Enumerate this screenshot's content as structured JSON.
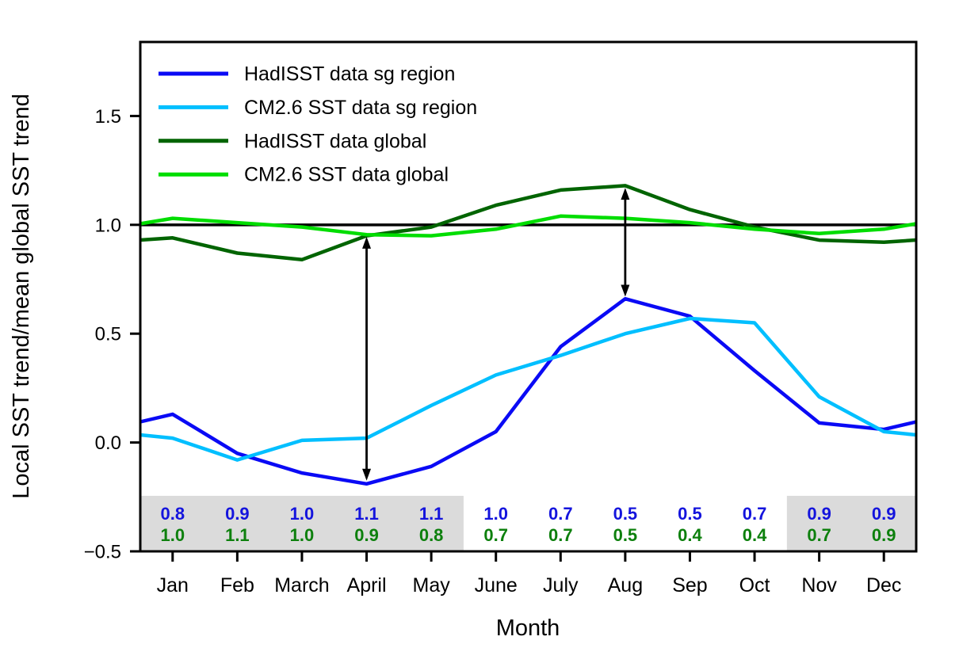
{
  "figure": {
    "background": "#ffffff"
  },
  "chart_data": {
    "type": "line",
    "title": "",
    "xlabel": "Month",
    "ylabel": "Local SST trend/mean global SST trend",
    "categories": [
      "Jan",
      "Feb",
      "March",
      "April",
      "May",
      "June",
      "July",
      "Aug",
      "Sep",
      "Oct",
      "Nov",
      "Dec"
    ],
    "ylim": [
      -0.5,
      1.84
    ],
    "xlim_month_index": [
      -0.5,
      11.5
    ],
    "yticks": [
      -0.5,
      0.0,
      0.5,
      1.0,
      1.5
    ],
    "ytick_labels": [
      "−0.5",
      "0.0",
      "0.5",
      "1.0",
      "1.5"
    ],
    "grid": false,
    "legend": {
      "position": "upper left",
      "frame": false
    },
    "reference_line": {
      "y": 1.0,
      "color": "#000000"
    },
    "series": [
      {
        "name": "HadISST data sg region",
        "color": "#0a0af5",
        "values": [
          0.13,
          -0.05,
          -0.14,
          -0.19,
          -0.11,
          0.05,
          0.44,
          0.66,
          0.58,
          0.33,
          0.09,
          0.06
        ],
        "cyclic_extension": true
      },
      {
        "name": "CM2.6 SST data sg region",
        "color": "#00bfff",
        "values": [
          0.02,
          -0.08,
          0.01,
          0.02,
          0.17,
          0.31,
          0.4,
          0.5,
          0.57,
          0.55,
          0.21,
          0.05
        ],
        "cyclic_extension": true
      },
      {
        "name": "HadISST data global",
        "color": "#006400",
        "values": [
          0.94,
          0.87,
          0.84,
          0.95,
          0.99,
          1.09,
          1.16,
          1.18,
          1.07,
          0.99,
          0.93,
          0.92
        ],
        "cyclic_extension": true
      },
      {
        "name": "CM2.6 SST data global",
        "color": "#00dd00",
        "values": [
          1.03,
          1.01,
          0.99,
          0.955,
          0.95,
          0.98,
          1.04,
          1.03,
          1.01,
          0.98,
          0.96,
          0.98
        ],
        "cyclic_extension": true
      }
    ],
    "arrows": [
      {
        "month": "April",
        "x_month_index": 3,
        "y_top": 0.945,
        "y_bottom": -0.175,
        "double_headed": true
      },
      {
        "month": "Aug",
        "x_month_index": 7,
        "y_top": 1.17,
        "y_bottom": 0.67,
        "double_headed": true
      }
    ],
    "shaded_bands": [
      {
        "x_from": -0.5,
        "x_to": 4.5,
        "y_from": -0.5,
        "y_to": -0.245,
        "color": "#dbdbdb"
      },
      {
        "x_from": 9.5,
        "x_to": 11.5,
        "y_from": -0.5,
        "y_to": -0.245,
        "color": "#dbdbdb"
      }
    ],
    "annotation_rows": [
      {
        "name": "sg region ratio row",
        "color": "#1414dd",
        "values": [
          "0.8",
          "0.9",
          "1.0",
          "1.1",
          "1.1",
          "1.0",
          "0.7",
          "0.5",
          "0.5",
          "0.7",
          "0.9",
          "0.9"
        ]
      },
      {
        "name": "global ratio row",
        "color": "#0d800d",
        "values": [
          "1.0",
          "1.1",
          "1.0",
          "0.9",
          "0.8",
          "0.7",
          "0.7",
          "0.5",
          "0.4",
          "0.4",
          "0.7",
          "0.9"
        ]
      }
    ]
  }
}
